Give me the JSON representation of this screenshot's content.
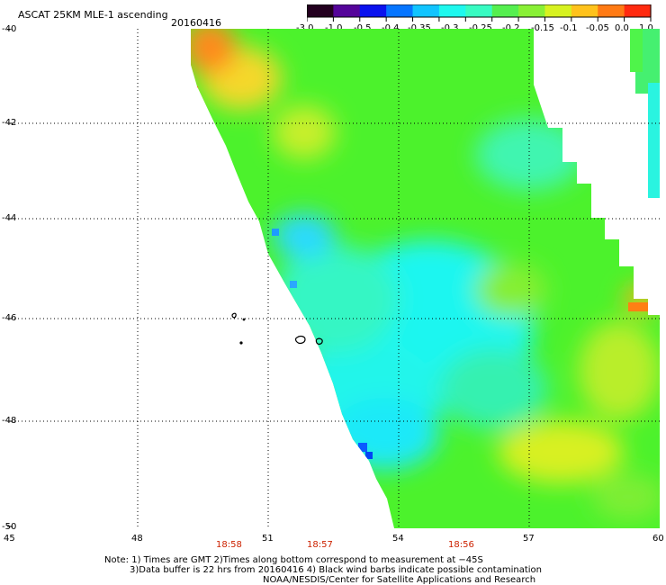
{
  "header": {
    "title": "ASCAT 25KM MLE-1 ascending",
    "date": "20160416"
  },
  "colorbar": {
    "labels": [
      "-3.0",
      "-1.0",
      "-0.5",
      "-0.4",
      "-0.35",
      "-0.3",
      "-0.25",
      "-0.2",
      "-0.15",
      "-0.1",
      "-0.05",
      "0.0",
      "1.0"
    ],
    "colors": [
      "#23001f",
      "#55049a",
      "#0a12ee",
      "#0675ff",
      "#11c4ff",
      "#1ef8ee",
      "#38fbc2",
      "#55ef4f",
      "#89f035",
      "#d7f220",
      "#ffc21c",
      "#ff7a14",
      "#ff2a0f"
    ]
  },
  "map": {
    "lat_labels": [
      "-40",
      "-42",
      "-44",
      "-46",
      "-48",
      "-50"
    ],
    "lon_labels": [
      "45",
      "48",
      "51",
      "54",
      "57",
      "60"
    ],
    "times": [
      "18:58",
      "18:57",
      "18:56"
    ]
  },
  "notes": {
    "line1": "Note: 1) Times are GMT 2)Times along bottom correspond to measurement at −45S",
    "line2": "3)Data buffer is 22 hrs from 20160416 4) Black wind barbs indicate possible contamination",
    "line3": "NOAA/NESDIS/Center for Satellite Applications and Research"
  }
}
